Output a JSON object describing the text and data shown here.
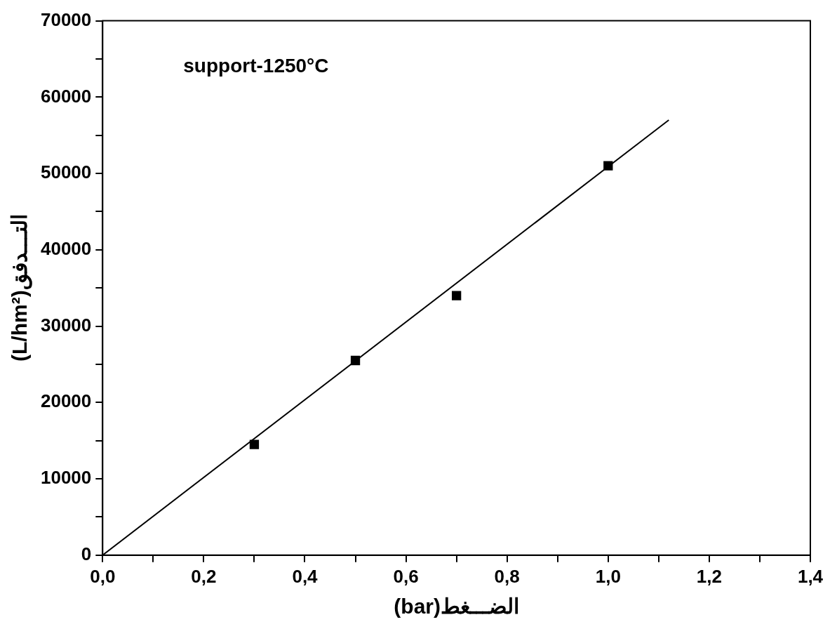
{
  "chart_data": {
    "type": "scatter",
    "xlabel": "(bar)الضـــغط",
    "ylabel": "(L/hm²)التـــدفق",
    "annotations": [
      "support-1250°C"
    ],
    "xlim": [
      0,
      1.4
    ],
    "xticks": [
      {
        "value": 0,
        "label": "0,0"
      },
      {
        "value": 0.1,
        "label": null
      },
      {
        "value": 0.2,
        "label": "0,2"
      },
      {
        "value": 0.3,
        "label": null
      },
      {
        "value": 0.4,
        "label": "0,4"
      },
      {
        "value": 0.5,
        "label": null
      },
      {
        "value": 0.6,
        "label": "0,6"
      },
      {
        "value": 0.7,
        "label": null
      },
      {
        "value": 0.8,
        "label": "0,8"
      },
      {
        "value": 0.9,
        "label": null
      },
      {
        "value": 1.0,
        "label": "1,0"
      },
      {
        "value": 1.1,
        "label": null
      },
      {
        "value": 1.2,
        "label": "1,2"
      },
      {
        "value": 1.3,
        "label": null
      },
      {
        "value": 1.4,
        "label": "1,4"
      }
    ],
    "ylim": [
      0,
      70000
    ],
    "yticks": [
      0,
      {
        "value": 5000,
        "label": null
      },
      10000,
      {
        "value": 15000,
        "label": null
      },
      20000,
      {
        "value": 25000,
        "label": null
      },
      30000,
      {
        "value": 35000,
        "label": null
      },
      40000,
      {
        "value": 45000,
        "label": null
      },
      50000,
      {
        "value": 55000,
        "label": null
      },
      60000,
      {
        "value": 65000,
        "label": null
      },
      70000
    ],
    "grid": false,
    "legend": false,
    "series": [
      {
        "marker": "square",
        "color": "#000000",
        "x": [
          0.3,
          0.5,
          0.7,
          1.0
        ],
        "values": [
          14500,
          25500,
          34000,
          51000
        ]
      },
      {
        "type": "line",
        "marker": "none",
        "line_style": "solid",
        "color": "#000000",
        "x": [
          0,
          1.12
        ],
        "values": [
          0,
          57000
        ]
      }
    ]
  }
}
